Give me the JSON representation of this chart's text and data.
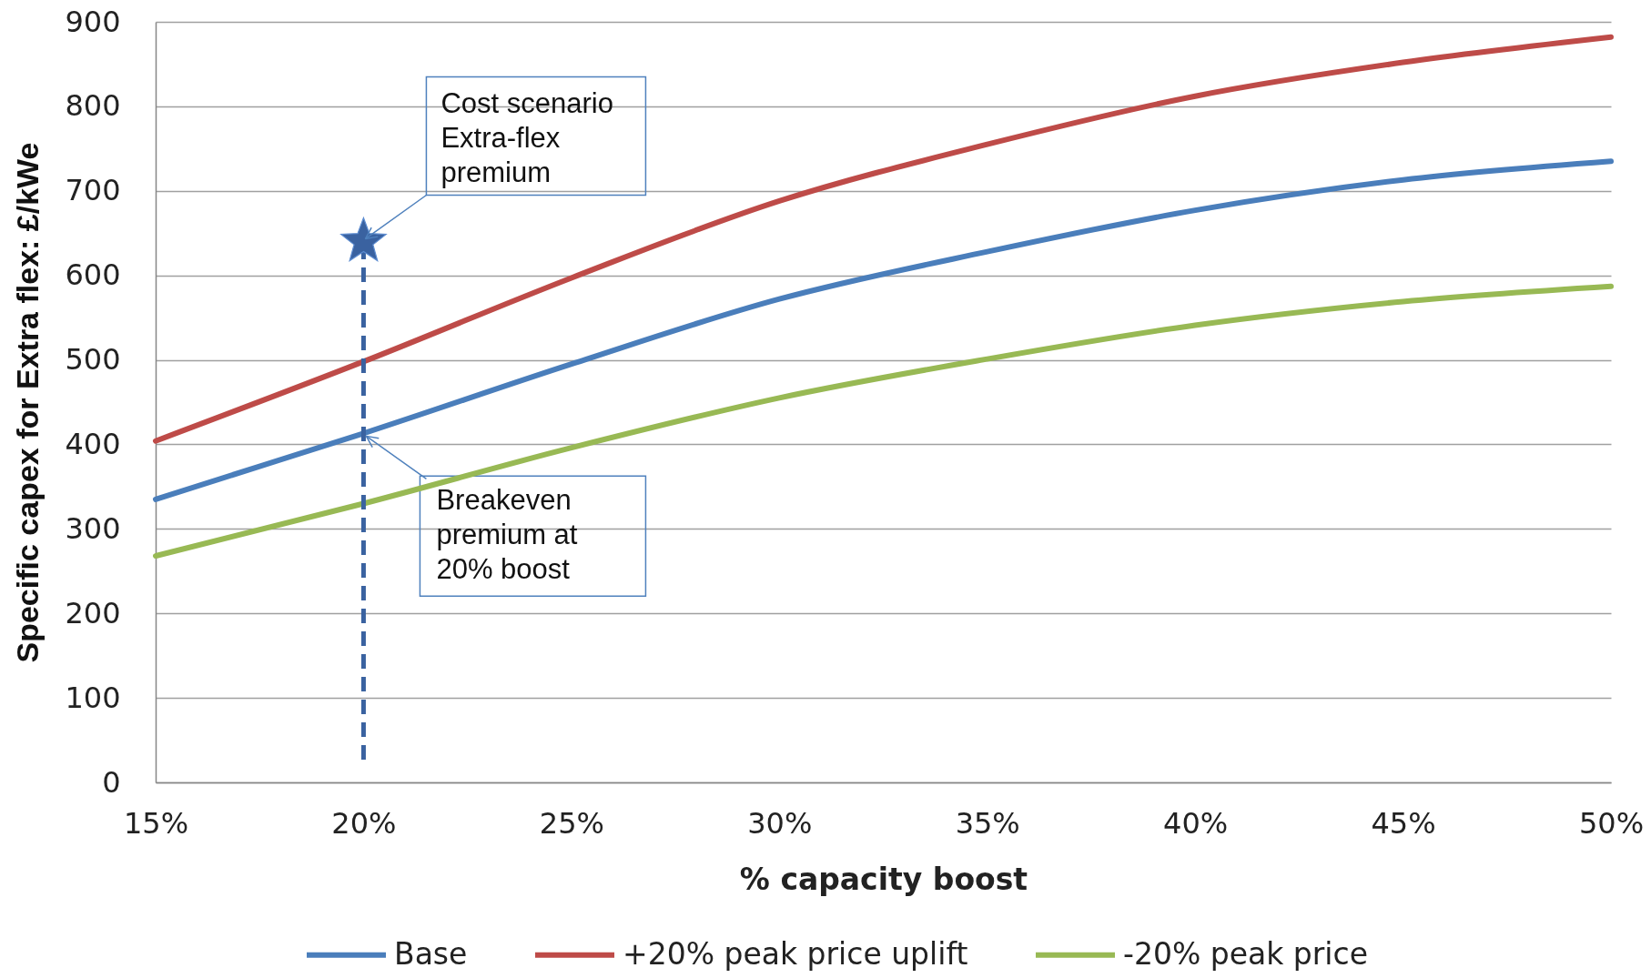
{
  "chart_data": {
    "type": "line",
    "xlabel": "% capacity boost",
    "ylabel": "Specific capex for Extra flex: £/kWe",
    "x": [
      15,
      20,
      25,
      30,
      35,
      40,
      45,
      50
    ],
    "xlim": [
      15,
      50
    ],
    "xticks": [
      {
        "value": 15,
        "label": "15%"
      },
      {
        "value": 20,
        "label": "20%"
      },
      {
        "value": 25,
        "label": "25%"
      },
      {
        "value": 30,
        "label": "30%"
      },
      {
        "value": 35,
        "label": "35%"
      },
      {
        "value": 40,
        "label": "40%"
      },
      {
        "value": 45,
        "label": "45%"
      },
      {
        "value": 50,
        "label": "50%"
      }
    ],
    "ylim": [
      0,
      900
    ],
    "yticks": [
      0,
      100,
      200,
      300,
      400,
      500,
      600,
      700,
      800,
      900
    ],
    "grid": "y",
    "legend": "bottom",
    "marker": "none",
    "line_style": "solid",
    "series": [
      {
        "name": "Base",
        "color": "#4a7ebb",
        "values": [
          335,
          413,
          495,
          572,
          628,
          677,
          713,
          735
        ]
      },
      {
        "name": "+20% peak price uplift",
        "color": "#be4b48",
        "values": [
          404,
          498,
          597,
          688,
          755,
          812,
          852,
          882
        ]
      },
      {
        "name": "-20% peak price",
        "color": "#98b954",
        "values": [
          268,
          330,
          396,
          455,
          501,
          541,
          569,
          587
        ]
      },
      {
        "type": "scatter",
        "x": [
          20
        ],
        "values": [
          640
        ],
        "errors": [
          [
            27,
            640
          ]
        ],
        "color": "#3a62a0",
        "marker": "star",
        "line_style": "dashed"
      }
    ],
    "annotations": [
      {
        "text": "Cost scenario\nExtra-flex\npremium",
        "x": 20,
        "y": 640
      },
      {
        "text": "Breakeven\npremium at\n20% boost",
        "x": 20,
        "y": 413
      }
    ]
  }
}
